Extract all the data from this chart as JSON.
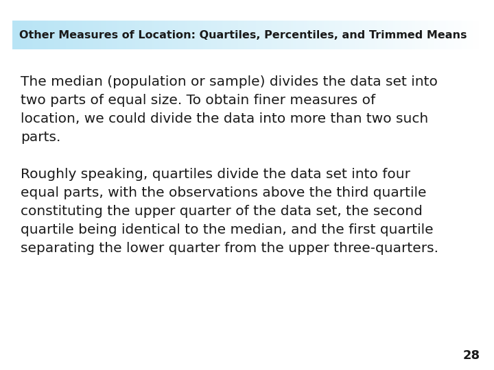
{
  "title": "Other Measures of Location: Quartiles, Percentiles, and Trimmed Means",
  "title_border_color": "#5bc8e8",
  "title_text_color": "#1a1a1a",
  "title_fontsize": 11.5,
  "body_text_color": "#1a1a1a",
  "body_fontsize": 14.5,
  "background_color": "#ffffff",
  "page_number": "28",
  "paragraph1_lines": [
    "The median (population or sample) divides the data set into",
    "two parts of equal size. To obtain finer measures of",
    "location, we could divide the data into more than two such",
    "parts."
  ],
  "paragraph2_lines": [
    "Roughly speaking, quartiles divide the data set into four",
    "equal parts, with the observations above the third quartile",
    "constituting the upper quarter of the data set, the second",
    "quartile being identical to the median, and the first quartile",
    "separating the lower quarter from the upper three-quarters."
  ]
}
